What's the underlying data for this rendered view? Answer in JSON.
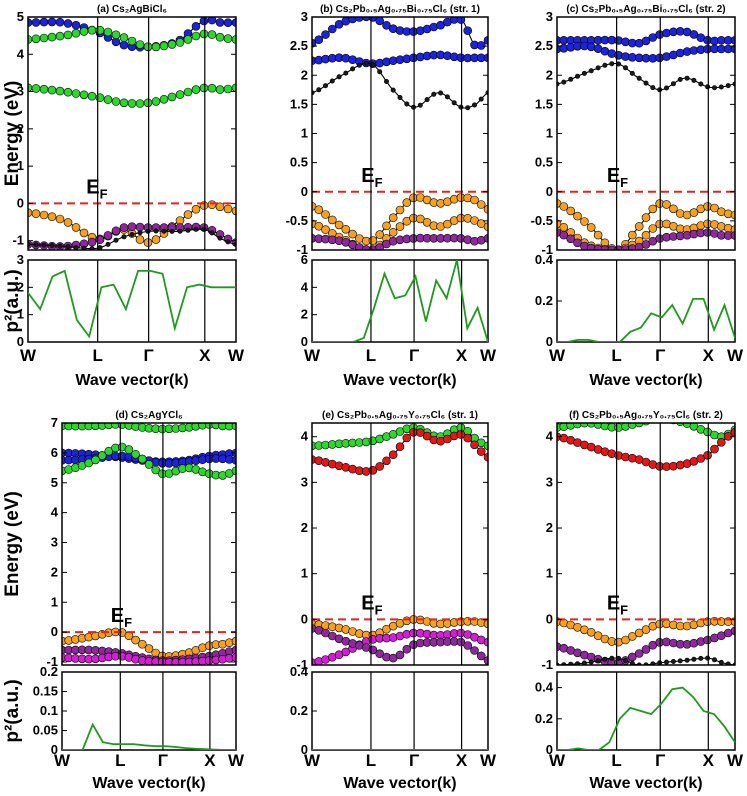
{
  "figure": {
    "k_points": [
      "W",
      "L",
      "Γ",
      "X",
      "W"
    ],
    "xlabel": "Wave vector(k)",
    "ylabel_energy": "Energy (eV)",
    "ylabel_p2": "p²(a.u.)",
    "fermi_label": "EF"
  },
  "colors": {
    "fermi": "#e8211f",
    "p2_line": "#1f9a1f",
    "blue": "#1d23d6",
    "green": "#2fd62f",
    "orange": "#f5a020",
    "purple": "#8c2a9c",
    "magenta": "#d11fd1",
    "red": "#e01818",
    "dark": "#1a1a1a"
  },
  "chart_data": [
    {
      "type": "line",
      "id": "a",
      "title": "(a) Cs₂AgBiCl₆",
      "energy_ylim": [
        -1.25,
        5
      ],
      "energy_yticks": [
        "5",
        "4",
        "3",
        "2",
        "1",
        "0",
        "-1"
      ],
      "p2_ylim": [
        0,
        3
      ],
      "p2_yticks": [
        "3",
        "2",
        "1",
        "0"
      ],
      "bands": [
        {
          "color": "blue",
          "values": [
            4.85,
            4.85,
            4.6,
            4.25,
            4.2,
            4.35,
            4.9,
            4.85,
            4.85
          ]
        },
        {
          "color": "green",
          "values": [
            4.4,
            4.5,
            4.65,
            4.45,
            4.2,
            4.3,
            4.55,
            4.45,
            4.4
          ]
        },
        {
          "color": "green",
          "values": [
            3.1,
            3.0,
            2.85,
            2.7,
            2.7,
            2.9,
            3.1,
            3.05,
            3.1
          ]
        },
        {
          "color": "orange",
          "values": [
            -0.25,
            -0.45,
            -0.95,
            -0.7,
            -1.05,
            -0.5,
            -0.05,
            -0.1,
            -0.2
          ]
        },
        {
          "color": "purple",
          "values": [
            -1.1,
            -1.15,
            -1.0,
            -0.65,
            -0.65,
            -0.65,
            -0.65,
            -0.85,
            -1.05
          ]
        },
        {
          "color": "dark",
          "values": [
            -1.1,
            -1.15,
            -1.2,
            -0.9,
            -0.75,
            -0.75,
            -0.7,
            -0.95,
            -1.1
          ]
        }
      ],
      "p2": [
        1.8,
        1.2,
        2.4,
        2.6,
        0.8,
        0.2,
        2.0,
        2.1,
        1.2,
        2.6,
        2.6,
        2.5,
        0.5,
        2.0,
        2.1,
        2.0,
        2.0,
        2.0
      ]
    },
    {
      "type": "line",
      "id": "b",
      "title": "(b) Cs₂Pb₀.₅Ag₀.₇₅Bi₀.₇₅Cl₆ (str. 1)",
      "energy_ylim": [
        -1,
        3
      ],
      "energy_yticks": [
        "3",
        "2.5",
        "2",
        "1.5",
        "1",
        "0.5",
        "0",
        "-0.5",
        "-1"
      ],
      "p2_ylim": [
        0,
        6
      ],
      "p2_yticks": [
        "6",
        "4",
        "2",
        "0"
      ],
      "bands": [
        {
          "color": "blue",
          "values": [
            2.55,
            2.9,
            3.0,
            2.8,
            2.75,
            2.85,
            2.95,
            2.5,
            2.6
          ]
        },
        {
          "color": "blue",
          "values": [
            2.25,
            2.3,
            2.2,
            2.25,
            2.3,
            2.35,
            2.3,
            2.3,
            2.3
          ]
        },
        {
          "color": "dark",
          "values": [
            1.7,
            2.0,
            2.2,
            1.75,
            1.45,
            1.7,
            1.45,
            1.5,
            1.7
          ]
        },
        {
          "color": "orange",
          "values": [
            -0.25,
            -0.6,
            -0.85,
            -0.45,
            -0.1,
            -0.2,
            -0.1,
            -0.15,
            -0.3
          ]
        },
        {
          "color": "orange",
          "values": [
            -0.55,
            -0.8,
            -1.0,
            -0.7,
            -0.45,
            -0.6,
            -0.45,
            -0.5,
            -0.6
          ]
        },
        {
          "color": "purple",
          "values": [
            -0.8,
            -0.85,
            -1.0,
            -0.85,
            -0.8,
            -0.8,
            -0.8,
            -0.85,
            -0.8
          ]
        }
      ],
      "p2": [
        0.0,
        0.0,
        0.0,
        0.0,
        0.0,
        0.3,
        2.5,
        5.0,
        3.2,
        3.4,
        4.8,
        1.5,
        4.5,
        3.2,
        6.0,
        1.0,
        2.5,
        0.0
      ]
    },
    {
      "type": "line",
      "id": "c",
      "title": "(c) Cs₂Pb₀.₅Ag₀.₇₅Bi₀.₇₅Cl₆ (str. 2)",
      "energy_ylim": [
        -1,
        3
      ],
      "energy_yticks": [
        "3",
        "2.5",
        "2",
        "1.5",
        "1",
        "0.5",
        "0",
        "-0.5",
        "-1"
      ],
      "p2_ylim": [
        0,
        0.4
      ],
      "p2_yticks": [
        "0.4",
        "0.2",
        "0"
      ],
      "bands": [
        {
          "color": "blue",
          "values": [
            2.6,
            2.6,
            2.6,
            2.55,
            2.7,
            2.75,
            2.6,
            2.6,
            2.6
          ]
        },
        {
          "color": "blue",
          "values": [
            2.45,
            2.5,
            2.35,
            2.3,
            2.3,
            2.4,
            2.45,
            2.45,
            2.45
          ]
        },
        {
          "color": "dark",
          "values": [
            1.85,
            2.05,
            2.2,
            1.95,
            1.75,
            1.95,
            1.8,
            1.8,
            1.85
          ]
        },
        {
          "color": "orange",
          "values": [
            -0.2,
            -0.55,
            -1.0,
            -0.6,
            -0.2,
            -0.4,
            -0.25,
            -0.35,
            -0.4
          ]
        },
        {
          "color": "orange",
          "values": [
            -0.55,
            -0.9,
            -1.0,
            -0.85,
            -0.55,
            -0.65,
            -0.55,
            -0.6,
            -0.65
          ]
        },
        {
          "color": "purple",
          "values": [
            -0.7,
            -0.95,
            -1.0,
            -0.95,
            -0.8,
            -0.75,
            -0.7,
            -0.75,
            -0.75
          ]
        }
      ],
      "p2": [
        0.0,
        0.0,
        0.01,
        0.01,
        0.0,
        0.0,
        0.0,
        0.05,
        0.07,
        0.14,
        0.12,
        0.18,
        0.09,
        0.21,
        0.21,
        0.06,
        0.18,
        0.02
      ]
    },
    {
      "type": "line",
      "id": "d",
      "title": "(d) Cs₂AgYCl₆",
      "energy_ylim": [
        -1.1,
        7
      ],
      "energy_yticks": [
        "7",
        "6",
        "5",
        "4",
        "3",
        "2",
        "1",
        "0",
        "-1"
      ],
      "p2_ylim": [
        0,
        0.2
      ],
      "p2_yticks": [
        "0.2",
        "0.15",
        "0.1",
        "0.05",
        "0"
      ],
      "bands": [
        {
          "color": "blue",
          "values": [
            6.0,
            5.95,
            5.85,
            5.75,
            5.7,
            5.75,
            5.9,
            5.95,
            6.0
          ]
        },
        {
          "color": "blue",
          "values": [
            5.75,
            5.8,
            5.9,
            5.8,
            5.65,
            5.7,
            5.8,
            5.8,
            5.75
          ]
        },
        {
          "color": "green",
          "values": [
            5.4,
            5.7,
            6.2,
            5.8,
            5.3,
            5.5,
            5.3,
            5.25,
            5.4
          ]
        },
        {
          "color": "green",
          "values": [
            6.9,
            6.9,
            6.95,
            6.85,
            6.8,
            6.85,
            6.95,
            6.9,
            6.9
          ]
        },
        {
          "color": "orange",
          "values": [
            -0.3,
            -0.15,
            0.0,
            -0.4,
            -0.8,
            -0.7,
            -0.45,
            -0.4,
            -0.3
          ]
        },
        {
          "color": "purple",
          "values": [
            -0.6,
            -0.6,
            -0.7,
            -0.85,
            -0.95,
            -0.9,
            -0.8,
            -0.7,
            -0.6
          ]
        },
        {
          "color": "magenta",
          "values": [
            -0.85,
            -0.9,
            -0.8,
            -0.95,
            -1.0,
            -1.0,
            -0.95,
            -0.9,
            -0.85
          ]
        }
      ],
      "p2": [
        0.0,
        0.0,
        0.0,
        0.065,
        0.02,
        0.015,
        0.015,
        0.015,
        0.012,
        0.01,
        0.01,
        0.008,
        0.005,
        0.003,
        0.002,
        0.001,
        0.0,
        0.0
      ]
    },
    {
      "type": "line",
      "id": "e",
      "title": "(e) Cs₂Pb₀.₅Ag₀.₇₅Y₀.₇₅Cl₆ (str. 1)",
      "energy_ylim": [
        -1,
        4.3
      ],
      "energy_yticks": [
        "4",
        "3",
        "2",
        "1",
        "0",
        "-1"
      ],
      "p2_ylim": [
        0,
        0.4
      ],
      "p2_yticks": [
        "0.4",
        "0.2",
        "0"
      ],
      "bands": [
        {
          "color": "green",
          "values": [
            3.8,
            3.85,
            3.9,
            4.05,
            4.2,
            4.0,
            4.2,
            3.95,
            3.8
          ]
        },
        {
          "color": "red",
          "values": [
            3.5,
            3.35,
            3.25,
            3.6,
            4.1,
            3.9,
            4.05,
            3.8,
            3.55
          ]
        },
        {
          "color": "orange",
          "values": [
            -0.1,
            -0.2,
            -0.35,
            -0.15,
            0.0,
            -0.1,
            -0.05,
            -0.05,
            -0.1
          ]
        },
        {
          "color": "magenta",
          "values": [
            -0.95,
            -0.75,
            -0.45,
            -0.4,
            -0.3,
            -0.35,
            -0.3,
            -0.4,
            -0.5
          ]
        },
        {
          "color": "purple",
          "values": [
            -0.2,
            -0.45,
            -0.65,
            -0.85,
            -0.55,
            -0.5,
            -0.5,
            -0.7,
            -0.9
          ]
        }
      ],
      "p2": [
        0.0,
        0.0,
        0.0,
        0.0,
        0.0,
        0.0,
        0.0,
        0.0,
        0.0,
        0.0,
        0.0,
        0.0,
        0.0,
        0.0,
        0.0,
        0.0,
        0.0,
        0.0
      ]
    },
    {
      "type": "line",
      "id": "f",
      "title": "(f) Cs₂Pb₀.₅Ag₀.₇₅Y₀.₇₅Cl₆ (str. 2)",
      "energy_ylim": [
        -1,
        4.3
      ],
      "energy_yticks": [
        "4",
        "3",
        "2",
        "1",
        "0",
        "-1"
      ],
      "p2_ylim": [
        0,
        0.5
      ],
      "p2_yticks": [
        "0.4",
        "0.2",
        "0"
      ],
      "bands": [
        {
          "color": "green",
          "values": [
            4.2,
            4.3,
            4.2,
            4.3,
            4.4,
            4.3,
            4.1,
            4.0,
            4.15
          ]
        },
        {
          "color": "red",
          "values": [
            4.0,
            3.8,
            3.6,
            3.5,
            3.35,
            3.4,
            3.6,
            3.9,
            4.1
          ]
        },
        {
          "color": "orange",
          "values": [
            -0.05,
            -0.25,
            -0.5,
            -0.3,
            -0.1,
            -0.15,
            -0.05,
            -0.05,
            -0.05
          ]
        },
        {
          "color": "purple",
          "values": [
            -0.6,
            -0.8,
            -0.95,
            -0.75,
            -0.5,
            -0.55,
            -0.45,
            -0.35,
            -0.25
          ]
        },
        {
          "color": "dark",
          "values": [
            -1.0,
            -0.95,
            -0.85,
            -1.0,
            -0.95,
            -0.9,
            -0.85,
            -0.95,
            -1.0
          ]
        }
      ],
      "p2": [
        0.0,
        0.0,
        0.01,
        0.0,
        0.0,
        0.05,
        0.2,
        0.27,
        0.25,
        0.23,
        0.3,
        0.39,
        0.4,
        0.34,
        0.25,
        0.23,
        0.15,
        0.05
      ]
    }
  ]
}
